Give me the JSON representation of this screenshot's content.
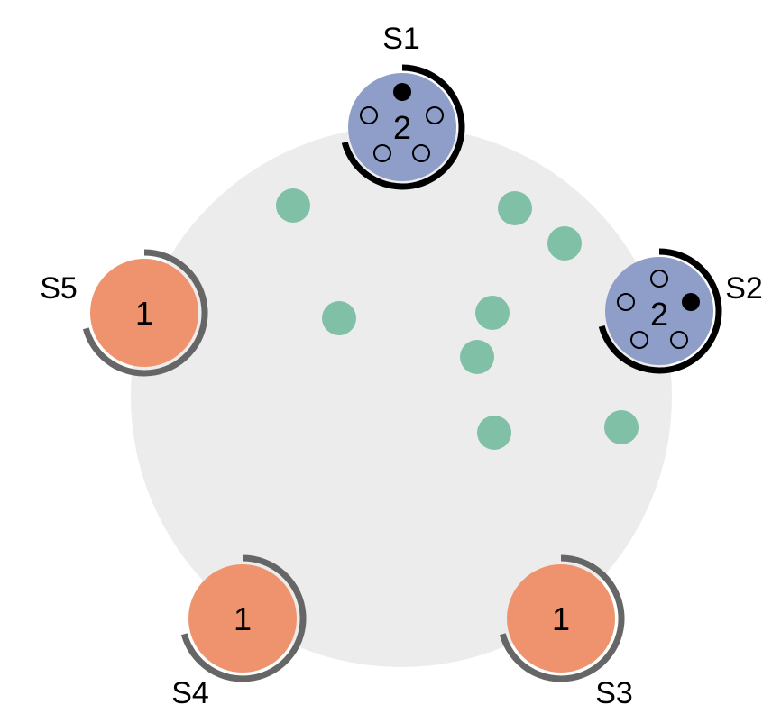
{
  "colors": {
    "arena": "#ececec",
    "dot": "#7fc0a6",
    "node_count_1": "#ee936d",
    "node_count_2": "#8e9ec8",
    "ring_dark": "#000000",
    "ring_gray": "#666666"
  },
  "nodes": [
    {
      "id": "s1",
      "label": "S1",
      "count": "2",
      "fill": "#8e9ec8",
      "ring": "#000000"
    },
    {
      "id": "s2",
      "label": "S2",
      "count": "2",
      "fill": "#8e9ec8",
      "ring": "#000000"
    },
    {
      "id": "s3",
      "label": "S3",
      "count": "1",
      "fill": "#ee936d",
      "ring": "#666666"
    },
    {
      "id": "s4",
      "label": "S4",
      "count": "1",
      "fill": "#ee936d",
      "ring": "#666666"
    },
    {
      "id": "s5",
      "label": "S5",
      "count": "1",
      "fill": "#ee936d",
      "ring": "#666666"
    }
  ]
}
